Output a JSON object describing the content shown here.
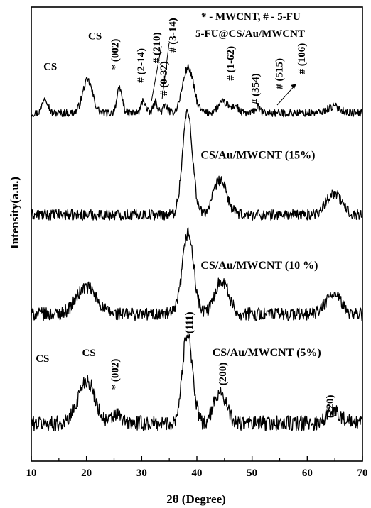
{
  "chart_data": {
    "type": "line",
    "xlabel": "2θ (Degree)",
    "ylabel": "Intensity(a.u.)",
    "xlim": [
      10,
      70
    ],
    "x_ticks": [
      "10",
      "20",
      "30",
      "40",
      "50",
      "60",
      "70"
    ],
    "y_ticks_labeled": false,
    "grid": false,
    "legend": {
      "line1": "* - MWCNT, # - 5-FU",
      "line2": "5-FU@CS/Au/MWCNT"
    },
    "series": [
      {
        "name": "5-FU@CS/Au/MWCNT",
        "offset": 3.0,
        "baseline": 0.22,
        "peaks": [
          {
            "x": 12.5,
            "h": 0.15,
            "w": 0.5
          },
          {
            "x": 20.2,
            "h": 0.3,
            "w": 0.9
          },
          {
            "x": 26.0,
            "h": 0.22,
            "w": 0.5
          },
          {
            "x": 30.3,
            "h": 0.12,
            "w": 0.4
          },
          {
            "x": 32.5,
            "h": 0.1,
            "w": 0.4
          },
          {
            "x": 34.3,
            "h": 0.07,
            "w": 0.4
          },
          {
            "x": 38.4,
            "h": 0.42,
            "w": 1.0
          },
          {
            "x": 44.8,
            "h": 0.1,
            "w": 1.0
          },
          {
            "x": 47.0,
            "h": 0.06,
            "w": 0.5
          },
          {
            "x": 51.0,
            "h": 0.05,
            "w": 0.5
          },
          {
            "x": 64.8,
            "h": 0.06,
            "w": 1.2
          }
        ],
        "noise": 0.035
      },
      {
        "name": "CS/Au/MWCNT (15%)",
        "offset": 2.0,
        "baseline": 0.28,
        "peaks": [
          {
            "x": 38.3,
            "h": 0.95,
            "w": 0.9
          },
          {
            "x": 44.2,
            "h": 0.32,
            "w": 1.2
          },
          {
            "x": 64.8,
            "h": 0.2,
            "w": 1.4
          }
        ],
        "noise": 0.05
      },
      {
        "name": "CS/Au/MWCNT (10 %)",
        "offset": 1.0,
        "baseline": 0.36,
        "peaks": [
          {
            "x": 20.0,
            "h": 0.25,
            "w": 1.8
          },
          {
            "x": 38.4,
            "h": 0.75,
            "w": 1.0
          },
          {
            "x": 44.5,
            "h": 0.32,
            "w": 1.2
          },
          {
            "x": 64.7,
            "h": 0.18,
            "w": 1.4
          }
        ],
        "noise": 0.06
      },
      {
        "name": "CS/Au/MWCNT (5%)",
        "offset": 0.0,
        "baseline": 0.35,
        "peaks": [
          {
            "x": 20.0,
            "h": 0.4,
            "w": 1.5
          },
          {
            "x": 25.5,
            "h": 0.08,
            "w": 0.8
          },
          {
            "x": 38.3,
            "h": 0.85,
            "w": 0.9
          },
          {
            "x": 44.2,
            "h": 0.3,
            "w": 1.1
          },
          {
            "x": 64.8,
            "h": 0.12,
            "w": 1.3
          }
        ],
        "noise": 0.07
      }
    ],
    "annotations": [
      {
        "id": "cs-top-left",
        "text": "CS",
        "x": 12.2,
        "yDisp": 3.62,
        "rotate": 0
      },
      {
        "id": "cs-top-mid",
        "text": "CS",
        "x": 20.3,
        "yDisp": 3.9,
        "rotate": 0
      },
      {
        "id": "star-002-top",
        "text": "* (002)",
        "x": 25.8,
        "yDisp": 3.62,
        "rotate": -90
      },
      {
        "id": "hash-2-14",
        "text": "# (2-14)",
        "x": 30.5,
        "yDisp": 3.5,
        "rotate": -90
      },
      {
        "id": "hash-210",
        "text": "# (210)",
        "x": 33.3,
        "yDisp": 3.68,
        "rotate": -90
      },
      {
        "id": "hash-0-32",
        "text": "# (0-32)",
        "x": 34.6,
        "yDisp": 3.38,
        "rotate": -90
      },
      {
        "id": "hash-3-14",
        "text": "# (3-14)",
        "x": 36.2,
        "yDisp": 3.78,
        "rotate": -90
      },
      {
        "id": "hash-1-62",
        "text": "# (1-62)",
        "x": 46.7,
        "yDisp": 3.52,
        "rotate": -90
      },
      {
        "id": "hash-354",
        "text": "# (354)",
        "x": 51.2,
        "yDisp": 3.3,
        "rotate": -90
      },
      {
        "id": "hash-515",
        "text": "# (515)",
        "x": 55.5,
        "yDisp": 3.44,
        "rotate": -90
      },
      {
        "id": "hash-106",
        "text": "# (106)",
        "x": 59.6,
        "yDisp": 3.58,
        "rotate": -90
      },
      {
        "id": "label-15",
        "text": "CS/Au/MWCNT (15%)",
        "x": 40.7,
        "yDisp": 2.8,
        "rotate": 0
      },
      {
        "id": "label-10",
        "text": "CS/Au/MWCNT (10 %)",
        "x": 40.7,
        "yDisp": 1.78,
        "rotate": 0
      },
      {
        "id": "label-5",
        "text": "CS/Au/MWCNT (5%)",
        "x": 42.8,
        "yDisp": 0.97,
        "rotate": 0
      },
      {
        "id": "cs-bottom-left",
        "text": "CS",
        "x": 10.8,
        "yDisp": 0.92,
        "rotate": 0
      },
      {
        "id": "cs-bottom-mid",
        "text": "CS",
        "x": 19.2,
        "yDisp": 0.97,
        "rotate": 0
      },
      {
        "id": "star-002-bottom",
        "text": "* (002)",
        "x": 25.8,
        "yDisp": 0.66,
        "rotate": -90
      },
      {
        "id": "peak-111",
        "text": "(111)",
        "x": 39.2,
        "yDisp": 1.18,
        "rotate": -90
      },
      {
        "id": "peak-200",
        "text": "(200)",
        "x": 45.3,
        "yDisp": 0.7,
        "rotate": -90
      },
      {
        "id": "peak-220",
        "text": "(220)",
        "x": 64.7,
        "yDisp": 0.4,
        "rotate": -90
      }
    ]
  }
}
